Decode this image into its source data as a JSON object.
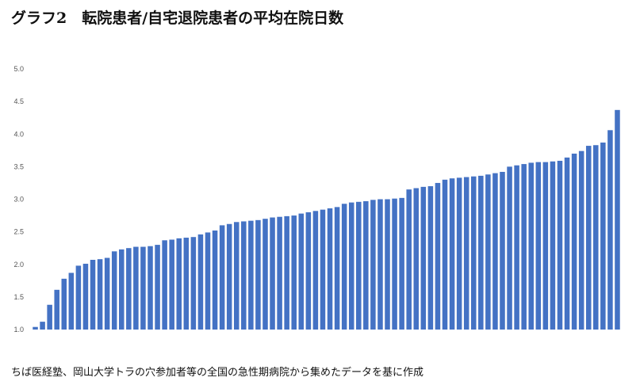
{
  "title": "グラフ2　転院患者/自宅退院患者の平均在院日数",
  "source_note": "ちば医経塾、岡山大学トラの穴参加者等の全国の急性期病院から集めたデータを基に作成",
  "colors": {
    "bar": "#4472c4"
  },
  "chart_data": {
    "type": "bar",
    "title": "グラフ2　転院患者/自宅退院患者の平均在院日数",
    "xlabel": "",
    "ylabel": "",
    "ylim": [
      1.0,
      5.0
    ],
    "y_ticks": [
      "1.0",
      "1.5",
      "2.0",
      "2.5",
      "3.0",
      "3.5",
      "4.0",
      "4.5",
      "5.0"
    ],
    "grid": false,
    "legend": "none",
    "values": [
      1.04,
      1.12,
      1.38,
      1.61,
      1.78,
      1.87,
      1.98,
      2.01,
      2.07,
      2.08,
      2.1,
      2.2,
      2.23,
      2.25,
      2.27,
      2.27,
      2.28,
      2.3,
      2.37,
      2.38,
      2.4,
      2.41,
      2.42,
      2.46,
      2.49,
      2.52,
      2.6,
      2.62,
      2.65,
      2.66,
      2.67,
      2.68,
      2.7,
      2.72,
      2.73,
      2.74,
      2.75,
      2.78,
      2.8,
      2.82,
      2.84,
      2.86,
      2.88,
      2.93,
      2.95,
      2.96,
      2.97,
      2.99,
      3.0,
      3.0,
      3.01,
      3.02,
      3.15,
      3.17,
      3.19,
      3.2,
      3.25,
      3.3,
      3.32,
      3.33,
      3.34,
      3.35,
      3.36,
      3.38,
      3.4,
      3.42,
      3.5,
      3.52,
      3.54,
      3.56,
      3.57,
      3.57,
      3.58,
      3.59,
      3.64,
      3.7,
      3.74,
      3.82,
      3.83,
      3.87,
      4.06,
      4.37
    ]
  }
}
